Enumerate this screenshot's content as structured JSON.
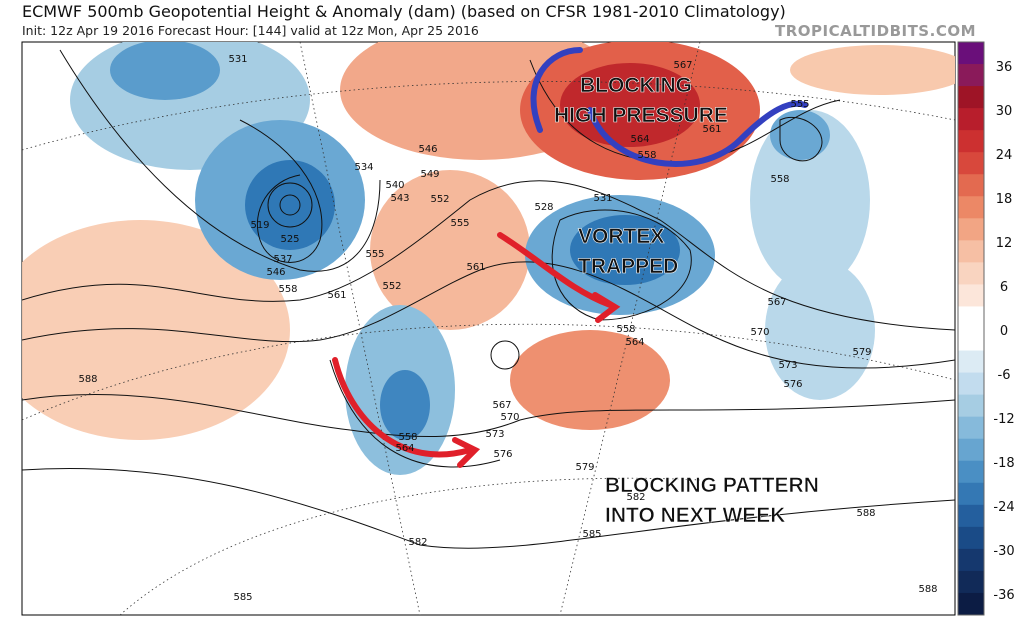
{
  "header": {
    "title": "ECMWF 500mb Geopotential Height & Anomaly (dam) (based on CFSR 1981-2010 Climatology)",
    "subtitle": "Init: 12z Apr 19 2016   Forecast Hour: [144]   valid at 12z Mon, Apr 25 2016",
    "watermark": "TROPICALTIDBITS.COM"
  },
  "annotations": [
    {
      "lines": [
        "BLOCKING",
        "HIGH PRESSURE"
      ]
    },
    {
      "lines": [
        "VORTEX",
        "TRAPPED"
      ]
    },
    {
      "lines": [
        "BLOCKING PATTERN",
        "INTO NEXT WEEK"
      ]
    }
  ],
  "colorbar": {
    "ticks": [
      36,
      30,
      24,
      18,
      12,
      6,
      0,
      -6,
      -12,
      -18,
      -24,
      -30,
      -36
    ]
  },
  "contour_labels": [
    "531",
    "534",
    "540",
    "543",
    "546",
    "549",
    "552",
    "555",
    "519",
    "525",
    "537",
    "546",
    "558",
    "561",
    "555",
    "552",
    "561",
    "528",
    "531",
    "567",
    "561",
    "564",
    "558",
    "555",
    "558",
    "567",
    "570",
    "573",
    "576",
    "579",
    "558",
    "564",
    "567",
    "570",
    "573",
    "576",
    "579",
    "582",
    "585",
    "582",
    "585",
    "588",
    "588",
    "588",
    "558",
    "564"
  ]
}
